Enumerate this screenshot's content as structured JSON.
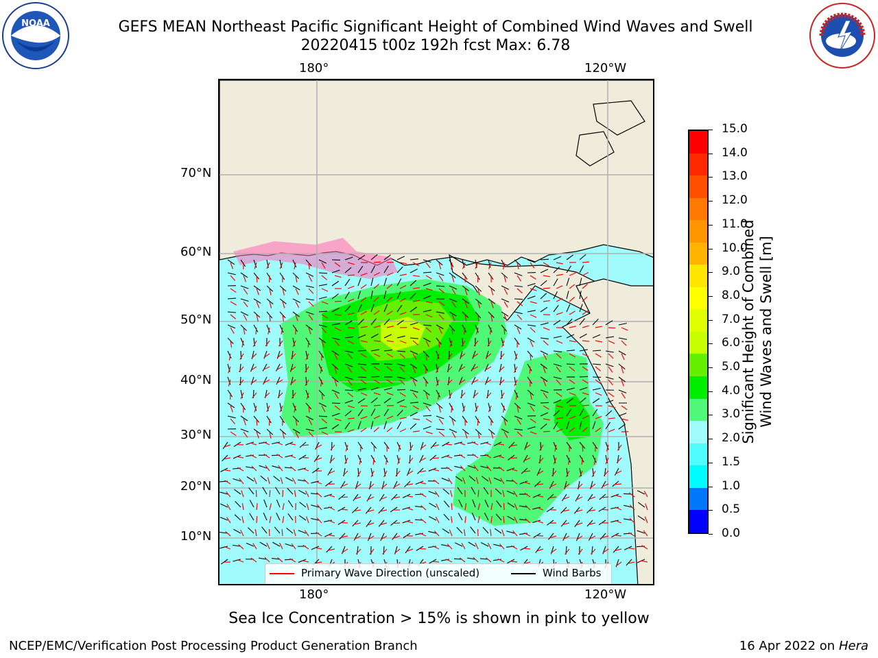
{
  "header": {
    "title_line1": "GEFS MEAN Northeast Pacific Significant Height of Combined Wind Waves and Swell",
    "title_line2": "20220415 t00z 192h fcst   Max: 6.78",
    "left_logo": "noaa-logo",
    "right_logo": "nws-logo"
  },
  "map": {
    "top_lon_labels": [
      "180°",
      "120°W"
    ],
    "bottom_lon_labels": [
      "180°",
      "120°W"
    ],
    "lat_labels": [
      "70°N",
      "60°N",
      "50°N",
      "40°N",
      "30°N",
      "20°N",
      "10°N"
    ],
    "ocean_default_color": "#a0fcfc",
    "land_color": "#efecdc",
    "legend": {
      "wave_direction_label": "Primary Wave Direction (unscaled)",
      "wave_direction_color": "#ff0000",
      "wind_barbs_label": "Wind Barbs",
      "wind_barbs_color": "#000000"
    }
  },
  "colorbar": {
    "label_line1": "Significant Height of Combined",
    "label_line2": "Wind Waves and Swell [m]",
    "tick_labels": [
      "15.0",
      "14.0",
      "13.0",
      "12.0",
      "11.0",
      "10.0",
      "9.0",
      "8.0",
      "7.0",
      "6.0",
      "5.0",
      "4.0",
      "3.0",
      "2.0",
      "1.5",
      "1.0",
      "0.5",
      "0.0"
    ],
    "colors_top_to_bottom": [
      "#ff0000",
      "#ff2800",
      "#ff5000",
      "#ff7800",
      "#ff9600",
      "#ffb400",
      "#ffe600",
      "#ffff00",
      "#e0ff00",
      "#c8ff00",
      "#64f000",
      "#00ee00",
      "#50f878",
      "#a0fcfc",
      "#50fcfc",
      "#00fcfc",
      "#0078fc",
      "#0000fc"
    ]
  },
  "caption": "Sea Ice Concentration > 15% is shown in pink to yellow",
  "footer": {
    "left": "NCEP/EMC/Verification Post Processing Product Generation Branch",
    "right_prefix": "16 Apr 2022 on ",
    "right_machine": "Hera"
  }
}
